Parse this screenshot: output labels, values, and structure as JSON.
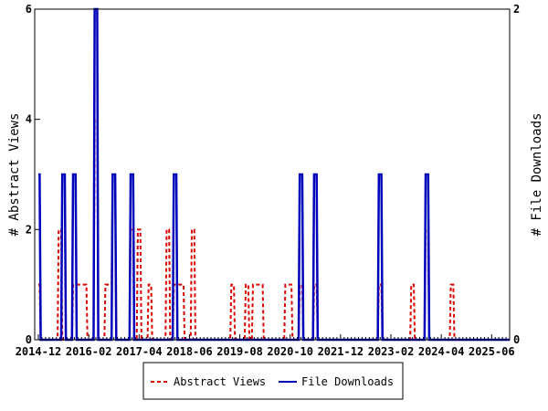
{
  "chart_data": {
    "type": "line",
    "x_start": "2014-12",
    "x_step": "month",
    "xtick_labels": [
      "2014-12",
      "2016-02",
      "2017-04",
      "2018-06",
      "2019-08",
      "2020-10",
      "2021-12",
      "2023-02",
      "2024-04",
      "2025-06"
    ],
    "ylabel_left": "# Abstract Views",
    "ylabel_right": "# File Downloads",
    "ylim_left": [
      0,
      6
    ],
    "ylim_right": [
      0,
      2
    ],
    "yticks_left": [
      "0",
      "2",
      "4",
      "6"
    ],
    "yticks_right": [
      "0",
      "2"
    ],
    "legend_placement": "bottom",
    "series": [
      {
        "name": "Abstract Views",
        "axis": "left",
        "color": "#dd0000",
        "style": "dashed",
        "values": [
          1,
          0,
          0,
          0,
          0,
          0,
          2,
          0,
          0,
          0,
          1,
          1,
          1,
          1,
          0,
          0,
          4,
          0,
          0,
          1,
          1,
          3,
          0,
          0,
          0,
          0,
          2,
          0,
          2,
          0,
          0,
          1,
          0,
          0,
          0,
          0,
          2,
          0,
          1,
          1,
          1,
          0,
          0,
          2,
          0,
          0,
          0,
          0,
          0,
          0,
          0,
          0,
          0,
          0,
          1,
          0,
          0,
          0,
          1,
          0,
          1,
          1,
          1,
          0,
          0,
          0,
          0,
          0,
          0,
          1,
          1,
          0,
          0,
          1,
          0,
          0,
          0,
          1,
          0,
          0,
          0,
          0,
          0,
          0,
          0,
          0,
          0,
          0,
          0,
          0,
          0,
          0,
          0,
          0,
          0,
          1,
          0,
          0,
          0,
          0,
          0,
          0,
          0,
          0,
          1,
          0,
          0,
          0,
          2,
          0,
          0,
          0,
          0,
          0,
          0,
          1,
          0,
          0,
          0,
          0,
          0,
          0,
          0,
          0,
          0,
          0,
          0,
          0,
          0,
          0,
          0,
          0
        ]
      },
      {
        "name": "File Downloads",
        "axis": "right",
        "color": "#0000bb",
        "style": "solid",
        "values": [
          1,
          0,
          0,
          0,
          0,
          0,
          0,
          1,
          0,
          0,
          1,
          0,
          0,
          0,
          0,
          0,
          2,
          0,
          0,
          0,
          0,
          1,
          0,
          0,
          0,
          0,
          1,
          0,
          0,
          0,
          0,
          0,
          0,
          0,
          0,
          0,
          0,
          0,
          1,
          0,
          0,
          0,
          0,
          0,
          0,
          0,
          0,
          0,
          0,
          0,
          0,
          0,
          0,
          0,
          0,
          0,
          0,
          0,
          0,
          0,
          0,
          0,
          0,
          0,
          0,
          0,
          0,
          0,
          0,
          0,
          0,
          0,
          0,
          1,
          0,
          0,
          0,
          1,
          0,
          0,
          0,
          0,
          0,
          0,
          0,
          0,
          0,
          0,
          0,
          0,
          0,
          0,
          0,
          0,
          0,
          1,
          0,
          0,
          0,
          0,
          0,
          0,
          0,
          0,
          0,
          0,
          0,
          0,
          1,
          0,
          0,
          0,
          0,
          0,
          0,
          0,
          0,
          0,
          0,
          0,
          0,
          0,
          0,
          0,
          0,
          0,
          0,
          0,
          0,
          0,
          0,
          0
        ]
      }
    ]
  }
}
